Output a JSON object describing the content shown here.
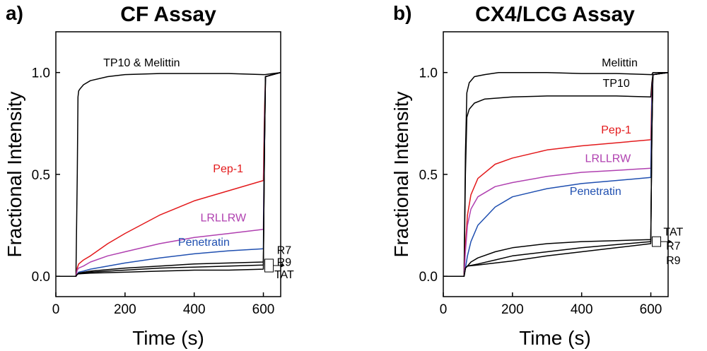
{
  "chart_data": [
    {
      "panel": "a)",
      "title": "CF Assay",
      "type": "line",
      "xlabel": "Time (s)",
      "ylabel": "Fractional Intensity",
      "xlim": [
        0,
        650
      ],
      "ylim": [
        -0.1,
        1.2
      ],
      "x_ticks": [
        "0",
        "200",
        "400",
        "600"
      ],
      "y_ticks": [
        "0.0",
        "0.5",
        "1.0"
      ],
      "legend_note": [
        "R7",
        "R9",
        "TAT"
      ],
      "series": [
        {
          "name": "TP10 & Melittin",
          "color": "#000000",
          "x": [
            0,
            58,
            62,
            64,
            66,
            70,
            80,
            100,
            150,
            200,
            300,
            400,
            500,
            600,
            605,
            650
          ],
          "y": [
            0.0,
            0.0,
            0.5,
            0.88,
            0.91,
            0.92,
            0.94,
            0.96,
            0.98,
            0.99,
            0.995,
            0.995,
            0.995,
            0.99,
            0.99,
            1.0
          ]
        },
        {
          "name": "Pep-1",
          "color": "#e31a1c",
          "x": [
            0,
            58,
            62,
            66,
            80,
            100,
            150,
            200,
            300,
            400,
            500,
            600,
            603,
            606,
            650
          ],
          "y": [
            0.0,
            0.0,
            0.04,
            0.06,
            0.08,
            0.1,
            0.16,
            0.21,
            0.3,
            0.37,
            0.42,
            0.47,
            0.8,
            0.98,
            1.0
          ]
        },
        {
          "name": "LRLLRW",
          "color": "#b040b0",
          "x": [
            0,
            58,
            62,
            66,
            80,
            100,
            150,
            200,
            300,
            400,
            500,
            600,
            603,
            606,
            650
          ],
          "y": [
            0.0,
            0.0,
            0.03,
            0.04,
            0.05,
            0.07,
            0.1,
            0.12,
            0.16,
            0.19,
            0.21,
            0.23,
            0.7,
            0.98,
            1.0
          ]
        },
        {
          "name": "Penetratin",
          "color": "#1f4fb0",
          "x": [
            0,
            58,
            62,
            66,
            80,
            100,
            150,
            200,
            300,
            400,
            500,
            600,
            603,
            606,
            650
          ],
          "y": [
            0.0,
            0.0,
            0.01,
            0.02,
            0.025,
            0.035,
            0.05,
            0.065,
            0.09,
            0.11,
            0.125,
            0.135,
            0.7,
            0.98,
            1.0
          ]
        },
        {
          "name": "R7",
          "color": "#000000",
          "x": [
            0,
            58,
            62,
            66,
            100,
            200,
            300,
            400,
            500,
            600,
            603,
            606,
            650
          ],
          "y": [
            0.0,
            0.0,
            0.01,
            0.015,
            0.025,
            0.04,
            0.05,
            0.06,
            0.065,
            0.07,
            0.6,
            0.98,
            1.0
          ]
        },
        {
          "name": "R9",
          "color": "#000000",
          "x": [
            0,
            58,
            62,
            66,
            100,
            200,
            300,
            400,
            500,
            600,
            603,
            606,
            650
          ],
          "y": [
            0.0,
            0.0,
            0.01,
            0.012,
            0.02,
            0.03,
            0.04,
            0.045,
            0.05,
            0.055,
            0.6,
            0.98,
            1.0
          ]
        },
        {
          "name": "TAT",
          "color": "#000000",
          "x": [
            0,
            58,
            62,
            66,
            100,
            200,
            300,
            400,
            500,
            600,
            603,
            606,
            650
          ],
          "y": [
            0.0,
            0.0,
            0.01,
            0.012,
            0.015,
            0.02,
            0.025,
            0.03,
            0.03,
            0.035,
            0.6,
            0.98,
            1.0
          ]
        }
      ],
      "labels": [
        {
          "text": "TP10 & Melittin",
          "color": "#000000",
          "x": 248,
          "y": 1.03
        },
        {
          "text": "Pep-1",
          "color": "#e31a1c",
          "x": 498,
          "y": 0.51
        },
        {
          "text": "LRLLRW",
          "color": "#b040b0",
          "x": 484,
          "y": 0.27
        },
        {
          "text": "Penetratin",
          "color": "#1f4fb0",
          "x": 428,
          "y": 0.15
        },
        {
          "text": "R7",
          "color": "#000000",
          "x": 660,
          "y": 0.11
        },
        {
          "text": "R9",
          "color": "#000000",
          "x": 660,
          "y": 0.05
        },
        {
          "text": "TAT",
          "color": "#000000",
          "x": 660,
          "y": -0.01
        }
      ]
    },
    {
      "panel": "b)",
      "title": "CX4/LCG Assay",
      "type": "line",
      "xlabel": "Time (s)",
      "ylabel": "Fractional Intensity",
      "xlim": [
        0,
        650
      ],
      "ylim": [
        -0.1,
        1.2
      ],
      "x_ticks": [
        "0",
        "200",
        "400",
        "600"
      ],
      "y_ticks": [
        "0.0",
        "0.5",
        "1.0"
      ],
      "legend_note": [
        "TAT",
        "R7",
        "R9"
      ],
      "series": [
        {
          "name": "Melittin",
          "color": "#000000",
          "x": [
            0,
            60,
            64,
            68,
            75,
            90,
            120,
            160,
            200,
            300,
            400,
            500,
            600,
            603,
            606,
            650
          ],
          "y": [
            0.0,
            0.0,
            0.6,
            0.9,
            0.95,
            0.98,
            0.99,
            1.0,
            1.0,
            1.0,
            0.995,
            0.995,
            0.99,
            0.99,
            1.0,
            1.0
          ]
        },
        {
          "name": "TP10",
          "color": "#000000",
          "x": [
            0,
            60,
            64,
            68,
            75,
            90,
            120,
            160,
            200,
            300,
            400,
            500,
            600,
            603,
            606,
            650
          ],
          "y": [
            0.0,
            0.0,
            0.5,
            0.78,
            0.82,
            0.85,
            0.87,
            0.875,
            0.88,
            0.885,
            0.885,
            0.885,
            0.88,
            0.95,
            0.99,
            1.0
          ]
        },
        {
          "name": "Pep-1",
          "color": "#e31a1c",
          "x": [
            0,
            60,
            64,
            70,
            80,
            100,
            150,
            200,
            300,
            400,
            500,
            600,
            603,
            606,
            650
          ],
          "y": [
            0.0,
            0.0,
            0.15,
            0.3,
            0.4,
            0.48,
            0.55,
            0.58,
            0.62,
            0.64,
            0.655,
            0.67,
            0.9,
            0.99,
            1.0
          ]
        },
        {
          "name": "LRLLRW",
          "color": "#b040b0",
          "x": [
            0,
            60,
            64,
            70,
            80,
            100,
            150,
            200,
            300,
            400,
            500,
            600,
            603,
            606,
            650
          ],
          "y": [
            0.0,
            0.0,
            0.12,
            0.25,
            0.33,
            0.39,
            0.44,
            0.46,
            0.49,
            0.51,
            0.52,
            0.53,
            0.85,
            0.99,
            1.0
          ]
        },
        {
          "name": "Penetratin",
          "color": "#1f4fb0",
          "x": [
            0,
            60,
            64,
            70,
            80,
            100,
            150,
            200,
            300,
            400,
            500,
            600,
            603,
            606,
            650
          ],
          "y": [
            0.0,
            0.0,
            0.04,
            0.1,
            0.17,
            0.25,
            0.34,
            0.39,
            0.43,
            0.455,
            0.47,
            0.485,
            0.85,
            0.99,
            1.0
          ]
        },
        {
          "name": "TAT",
          "color": "#000000",
          "x": [
            0,
            60,
            64,
            70,
            80,
            100,
            150,
            200,
            300,
            400,
            500,
            600,
            603,
            606,
            650
          ],
          "y": [
            0.0,
            0.0,
            0.04,
            0.05,
            0.07,
            0.09,
            0.12,
            0.14,
            0.16,
            0.17,
            0.175,
            0.18,
            0.7,
            0.99,
            1.0
          ]
        },
        {
          "name": "R7",
          "color": "#000000",
          "x": [
            0,
            60,
            64,
            70,
            100,
            150,
            200,
            300,
            400,
            500,
            600,
            603,
            606,
            650
          ],
          "y": [
            0.0,
            0.0,
            0.04,
            0.05,
            0.06,
            0.08,
            0.1,
            0.12,
            0.14,
            0.155,
            0.17,
            0.7,
            0.99,
            1.0
          ]
        },
        {
          "name": "R9",
          "color": "#000000",
          "x": [
            0,
            60,
            64,
            70,
            100,
            150,
            200,
            300,
            400,
            500,
            600,
            603,
            606,
            650
          ],
          "y": [
            0.0,
            0.0,
            0.04,
            0.05,
            0.055,
            0.065,
            0.075,
            0.1,
            0.12,
            0.14,
            0.16,
            0.7,
            0.99,
            1.0
          ]
        }
      ],
      "labels": [
        {
          "text": "Melittin",
          "color": "#000000",
          "x": 510,
          "y": 1.03
        },
        {
          "text": "TP10",
          "color": "#000000",
          "x": 500,
          "y": 0.93
        },
        {
          "text": "Pep-1",
          "color": "#e31a1c",
          "x": 500,
          "y": 0.7
        },
        {
          "text": "LRLLRW",
          "color": "#b040b0",
          "x": 476,
          "y": 0.56
        },
        {
          "text": "Penetratin",
          "color": "#1f4fb0",
          "x": 440,
          "y": 0.4
        },
        {
          "text": "TAT",
          "color": "#000000",
          "x": 665,
          "y": 0.2
        },
        {
          "text": "R7",
          "color": "#000000",
          "x": 665,
          "y": 0.13
        },
        {
          "text": "R9",
          "color": "#000000",
          "x": 665,
          "y": 0.06
        }
      ]
    }
  ]
}
